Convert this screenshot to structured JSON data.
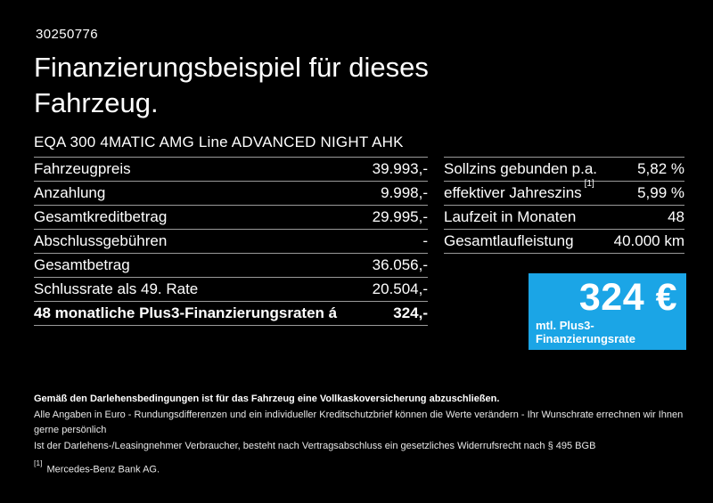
{
  "page": {
    "doc_number": "30250776",
    "title": "Finanzierungsbeispiel für dieses Fahrzeug.",
    "vehicle_model": "EQA 300 4MATIC AMG Line ADVANCED NIGHT AHK"
  },
  "colors": {
    "background": "#000000",
    "text": "#FFFFFF",
    "divider": "#9A9A9A",
    "accent_blue": "#1BA5E6"
  },
  "financing_table": {
    "rows": [
      {
        "label": "Fahrzeugpreis",
        "value": "39.993,-"
      },
      {
        "label": "Anzahlung",
        "value": "9.998,-"
      },
      {
        "label": "Gesamtkreditbetrag",
        "value": "29.995,-"
      },
      {
        "label": "Abschlussgebühren",
        "value": "-"
      },
      {
        "label": "Gesamtbetrag",
        "value": "36.056,-"
      },
      {
        "label": "Schlussrate als 49. Rate",
        "value": "20.504,-"
      },
      {
        "label": "48 monatliche Plus3-Finanzierungsraten á",
        "value": "324,-"
      }
    ]
  },
  "conditions_table": {
    "rows": [
      {
        "label": "Sollzins gebunden p.a.",
        "value": "5,82 %"
      },
      {
        "label": "effektiver Jahreszins",
        "footnote": "[1]",
        "value": "5,99 %"
      },
      {
        "label": "Laufzeit in Monaten",
        "value": "48"
      },
      {
        "label": "Gesamtlaufleistung",
        "value": "40.000 km"
      }
    ]
  },
  "rate_box": {
    "amount": "324 €",
    "caption": "mtl. Plus3-Finanzierungsrate",
    "background": "#1BA5E6"
  },
  "footer": {
    "line1": "Gemäß den Darlehensbedingungen ist für das Fahrzeug eine Vollkaskoversicherung abzuschließen.",
    "line2": "Alle Angaben in Euro - Rundungsdifferenzen und ein individueller Kreditschutzbrief können die Werte verändern - Ihr Wunschrate errechnen wir Ihnen gerne persönlich",
    "line3": "Ist der Darlehens-/Leasingnehmer Verbraucher, besteht nach Vertragsabschluss ein gesetzliches Widerrufsrecht nach § 495 BGB",
    "footnote_marker": "[1]",
    "footnote_text": "Mercedes-Benz Bank AG."
  }
}
